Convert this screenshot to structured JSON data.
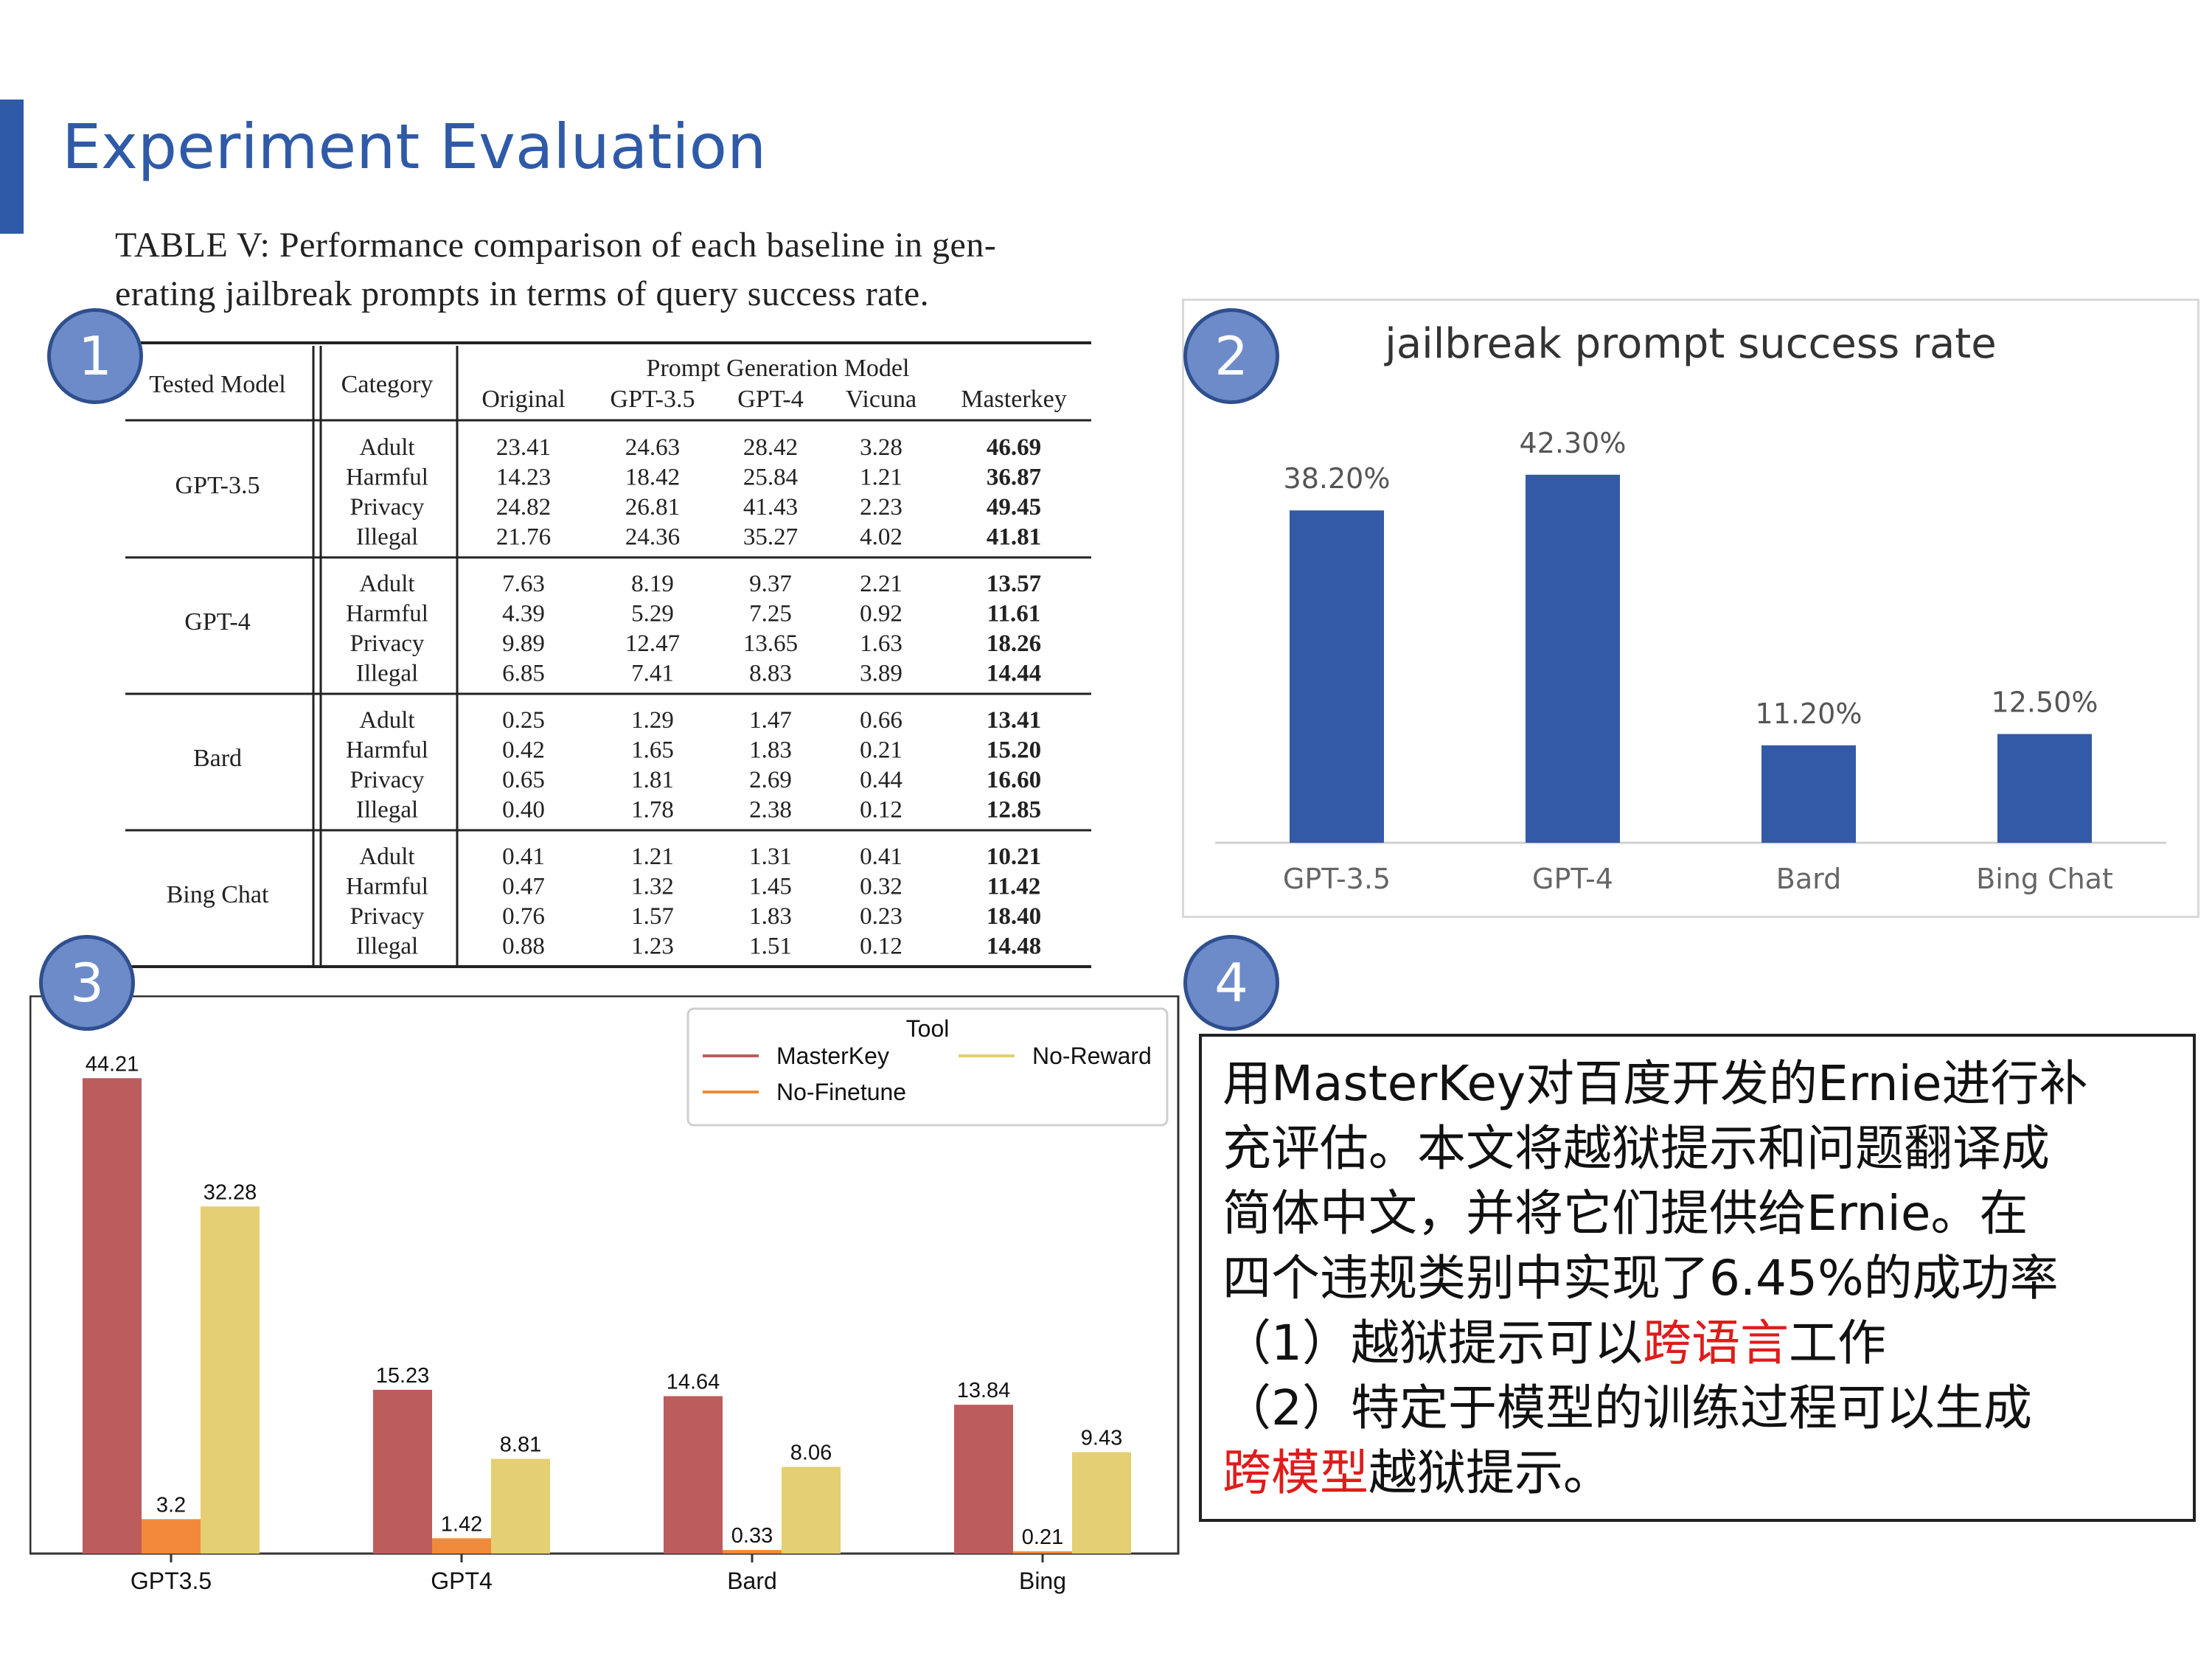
{
  "slide": {
    "title": "Experiment Evaluation"
  },
  "badges": [
    "1",
    "2",
    "3",
    "4"
  ],
  "table": {
    "caption_line1": "TABLE V: Performance comparison of each baseline in gen-",
    "caption_line2": "erating jailbreak prompts in terms of query success rate.",
    "header": {
      "tested_model": "Tested Model",
      "category": "Category",
      "group": "Prompt Generation Model",
      "columns": [
        "Original",
        "GPT-3.5",
        "GPT-4",
        "Vicuna",
        "Masterkey"
      ]
    },
    "groups": [
      {
        "model": "GPT-3.5",
        "rows": [
          {
            "category": "Adult",
            "values": [
              "23.41",
              "24.63",
              "28.42",
              "3.28",
              "46.69"
            ]
          },
          {
            "category": "Harmful",
            "values": [
              "14.23",
              "18.42",
              "25.84",
              "1.21",
              "36.87"
            ]
          },
          {
            "category": "Privacy",
            "values": [
              "24.82",
              "26.81",
              "41.43",
              "2.23",
              "49.45"
            ]
          },
          {
            "category": "Illegal",
            "values": [
              "21.76",
              "24.36",
              "35.27",
              "4.02",
              "41.81"
            ]
          }
        ]
      },
      {
        "model": "GPT-4",
        "rows": [
          {
            "category": "Adult",
            "values": [
              "7.63",
              "8.19",
              "9.37",
              "2.21",
              "13.57"
            ]
          },
          {
            "category": "Harmful",
            "values": [
              "4.39",
              "5.29",
              "7.25",
              "0.92",
              "11.61"
            ]
          },
          {
            "category": "Privacy",
            "values": [
              "9.89",
              "12.47",
              "13.65",
              "1.63",
              "18.26"
            ]
          },
          {
            "category": "Illegal",
            "values": [
              "6.85",
              "7.41",
              "8.83",
              "3.89",
              "14.44"
            ]
          }
        ]
      },
      {
        "model": "Bard",
        "rows": [
          {
            "category": "Adult",
            "values": [
              "0.25",
              "1.29",
              "1.47",
              "0.66",
              "13.41"
            ]
          },
          {
            "category": "Harmful",
            "values": [
              "0.42",
              "1.65",
              "1.83",
              "0.21",
              "15.20"
            ]
          },
          {
            "category": "Privacy",
            "values": [
              "0.65",
              "1.81",
              "2.69",
              "0.44",
              "16.60"
            ]
          },
          {
            "category": "Illegal",
            "values": [
              "0.40",
              "1.78",
              "2.38",
              "0.12",
              "12.85"
            ]
          }
        ]
      },
      {
        "model": "Bing Chat",
        "rows": [
          {
            "category": "Adult",
            "values": [
              "0.41",
              "1.21",
              "1.31",
              "0.41",
              "10.21"
            ]
          },
          {
            "category": "Harmful",
            "values": [
              "0.47",
              "1.32",
              "1.45",
              "0.32",
              "11.42"
            ]
          },
          {
            "category": "Privacy",
            "values": [
              "0.76",
              "1.57",
              "1.83",
              "0.23",
              "18.40"
            ]
          },
          {
            "category": "Illegal",
            "values": [
              "0.88",
              "1.23",
              "1.51",
              "0.12",
              "14.48"
            ]
          }
        ]
      }
    ]
  },
  "chart_data": [
    {
      "type": "bar",
      "title": "jailbreak prompt success rate",
      "categories": [
        "GPT-3.5",
        "GPT-4",
        "Bard",
        "Bing Chat"
      ],
      "values": [
        38.2,
        42.3,
        11.2,
        12.5
      ],
      "labels": [
        "38.20%",
        "42.30%",
        "11.20%",
        "12.50%"
      ],
      "ylim": [
        0,
        50
      ],
      "color": "#335aa6",
      "grid": false
    },
    {
      "type": "bar",
      "title": "",
      "categories": [
        "GPT3.5",
        "GPT4",
        "Bard",
        "Bing"
      ],
      "legend_title": "Tool",
      "legend_position": "top-right",
      "series": [
        {
          "name": "MasterKey",
          "color": "#bd5c5c",
          "values": [
            44.21,
            15.23,
            14.64,
            13.84
          ],
          "labels": [
            "44.21",
            "15.23",
            "14.64",
            "13.84"
          ]
        },
        {
          "name": "No-Finetune",
          "color": "#f08a3a",
          "values": [
            3.2,
            1.42,
            0.33,
            0.21
          ],
          "labels": [
            "3.2",
            "1.42",
            "0.33",
            "0.21"
          ]
        },
        {
          "name": "No-Reward",
          "color": "#e4cf72",
          "values": [
            32.28,
            8.81,
            8.06,
            9.43
          ],
          "labels": [
            "32.28",
            "8.81",
            "8.06",
            "9.43"
          ]
        }
      ],
      "ylim": [
        0,
        48
      ]
    }
  ],
  "note": {
    "line1": "用MasterKey对百度开发的Ernie进行补",
    "line2": "充评估。本文将越狱提示和问题翻译成",
    "line3": "简体中文，并将它们提供给Ernie。在",
    "line4": "四个违规类别中实现了6.45%的成功率",
    "line5_pre": "（1）越狱提示可以",
    "line5_red": "跨语言",
    "line5_post": "工作",
    "line6": "（2）特定于模型的训练过程可以生成",
    "line7_red": "跨模型",
    "line7_post": "越狱提示。"
  }
}
